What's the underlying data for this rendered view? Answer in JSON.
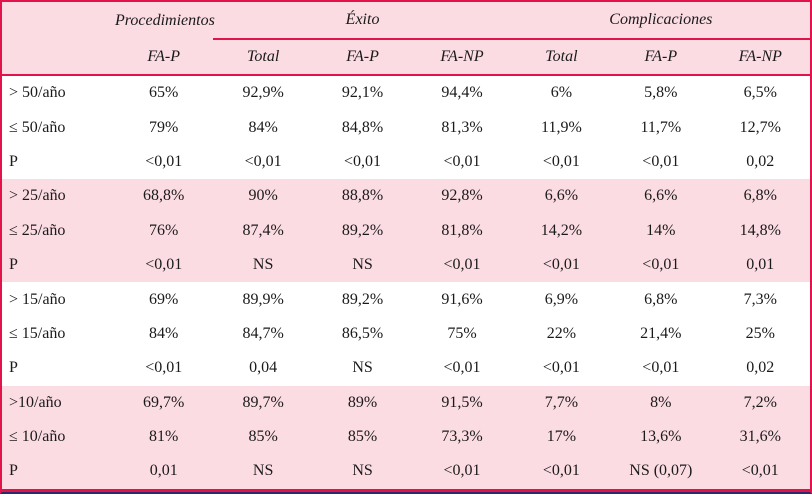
{
  "table": {
    "groups": [
      {
        "label": "",
        "span": 1
      },
      {
        "label": "Procedimientos",
        "span": 1
      },
      {
        "label": "Éxito",
        "span": 3
      },
      {
        "label": "Complicaciones",
        "span": 3
      }
    ],
    "sub_headers": [
      "",
      "FA-P",
      "Total",
      "FA-P",
      "FA-NP",
      "Total",
      "FA-P",
      "FA-NP"
    ],
    "sections": [
      {
        "shade": "white",
        "rows": [
          [
            "> 50/año",
            "65%",
            "92,9%",
            "92,1%",
            "94,4%",
            "6%",
            "5,8%",
            "6,5%"
          ],
          [
            "≤ 50/año",
            "79%",
            "84%",
            "84,8%",
            "81,3%",
            "11,9%",
            "11,7%",
            "12,7%"
          ],
          [
            "P",
            "<0,01",
            "<0,01",
            "<0,01",
            "<0,01",
            "<0,01",
            "<0,01",
            "0,02"
          ]
        ]
      },
      {
        "shade": "pink",
        "rows": [
          [
            "> 25/año",
            "68,8%",
            "90%",
            "88,8%",
            "92,8%",
            "6,6%",
            "6,6%",
            "6,8%"
          ],
          [
            "≤ 25/año",
            "76%",
            "87,4%",
            "89,2%",
            "81,8%",
            "14,2%",
            "14%",
            "14,8%"
          ],
          [
            "P",
            "<0,01",
            "NS",
            "NS",
            "<0,01",
            "<0,01",
            "<0,01",
            "0,01"
          ]
        ]
      },
      {
        "shade": "white",
        "rows": [
          [
            "> 15/año",
            "69%",
            "89,9%",
            "89,2%",
            "91,6%",
            "6,9%",
            "6,8%",
            "7,3%"
          ],
          [
            "≤ 15/año",
            "84%",
            "84,7%",
            "86,5%",
            "75%",
            "22%",
            "21,4%",
            "25%"
          ],
          [
            "P",
            "<0,01",
            "0,04",
            "NS",
            "<0,01",
            "<0,01",
            "<0,01",
            "0,02"
          ]
        ]
      },
      {
        "shade": "pink",
        "rows": [
          [
            ">10/año",
            "69,7%",
            "89,7%",
            "89%",
            "91,5%",
            "7,7%",
            "8%",
            "7,2%"
          ],
          [
            "≤ 10/año",
            "81%",
            "85%",
            "85%",
            "73,3%",
            "17%",
            "13,6%",
            "31,6%"
          ],
          [
            "P",
            "0,01",
            "NS",
            "NS",
            "<0,01",
            "<0,01",
            "NS (0,07)",
            "<0,01"
          ]
        ]
      }
    ]
  },
  "colors": {
    "frame_red": "#e2134a",
    "bottom_navy": "#2a2a6e",
    "band_pink": "#fbdce3",
    "text": "#1a1a1a"
  }
}
